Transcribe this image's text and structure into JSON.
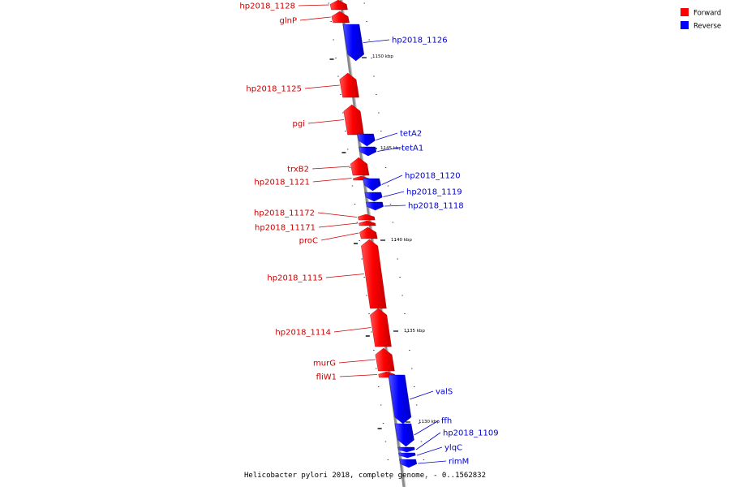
{
  "caption": "Helicobacter pylori 2018, complete genome. - 0..1562832",
  "legend": [
    {
      "label": "Forward",
      "color": "#ff0000"
    },
    {
      "label": "Reverse",
      "color": "#0000ff"
    }
  ],
  "colors": {
    "forward": "#ff0000",
    "reverse": "#0000ff",
    "forward_label": "#cc0000",
    "reverse_label": "#0000cc",
    "backbone": "#888888"
  },
  "kbp_ticks": [
    {
      "label": "1150 kbp",
      "kbp": 1150
    },
    {
      "label": "1145 kbp",
      "kbp": 1145
    },
    {
      "label": "1140 kbp",
      "kbp": 1140
    },
    {
      "label": "1135 kbp",
      "kbp": 1135
    },
    {
      "label": "1130 kbp",
      "kbp": 1130
    }
  ],
  "genes": [
    {
      "name": "hp2018_1128",
      "strand": "forward"
    },
    {
      "name": "glnP",
      "strand": "forward"
    },
    {
      "name": "hp2018_1126",
      "strand": "reverse"
    },
    {
      "name": "hp2018_1125",
      "strand": "forward"
    },
    {
      "name": "pgi",
      "strand": "forward"
    },
    {
      "name": "tetA2",
      "strand": "reverse"
    },
    {
      "name": "tetA1",
      "strand": "reverse"
    },
    {
      "name": "trxB2",
      "strand": "forward"
    },
    {
      "name": "hp2018_1121",
      "strand": "forward"
    },
    {
      "name": "hp2018_1120",
      "strand": "reverse"
    },
    {
      "name": "hp2018_1119",
      "strand": "reverse"
    },
    {
      "name": "hp2018_1118",
      "strand": "reverse"
    },
    {
      "name": "hp2018_11172",
      "strand": "forward"
    },
    {
      "name": "hp2018_11171",
      "strand": "forward"
    },
    {
      "name": "proC",
      "strand": "forward"
    },
    {
      "name": "hp2018_1115",
      "strand": "forward"
    },
    {
      "name": "hp2018_1114",
      "strand": "forward"
    },
    {
      "name": "murG",
      "strand": "forward"
    },
    {
      "name": "fliW1",
      "strand": "forward"
    },
    {
      "name": "valS",
      "strand": "reverse"
    },
    {
      "name": "ffh",
      "strand": "reverse"
    },
    {
      "name": "hp2018_1109",
      "strand": "reverse"
    },
    {
      "name": "ylqC",
      "strand": "reverse"
    },
    {
      "name": "rimM",
      "strand": "reverse"
    }
  ]
}
